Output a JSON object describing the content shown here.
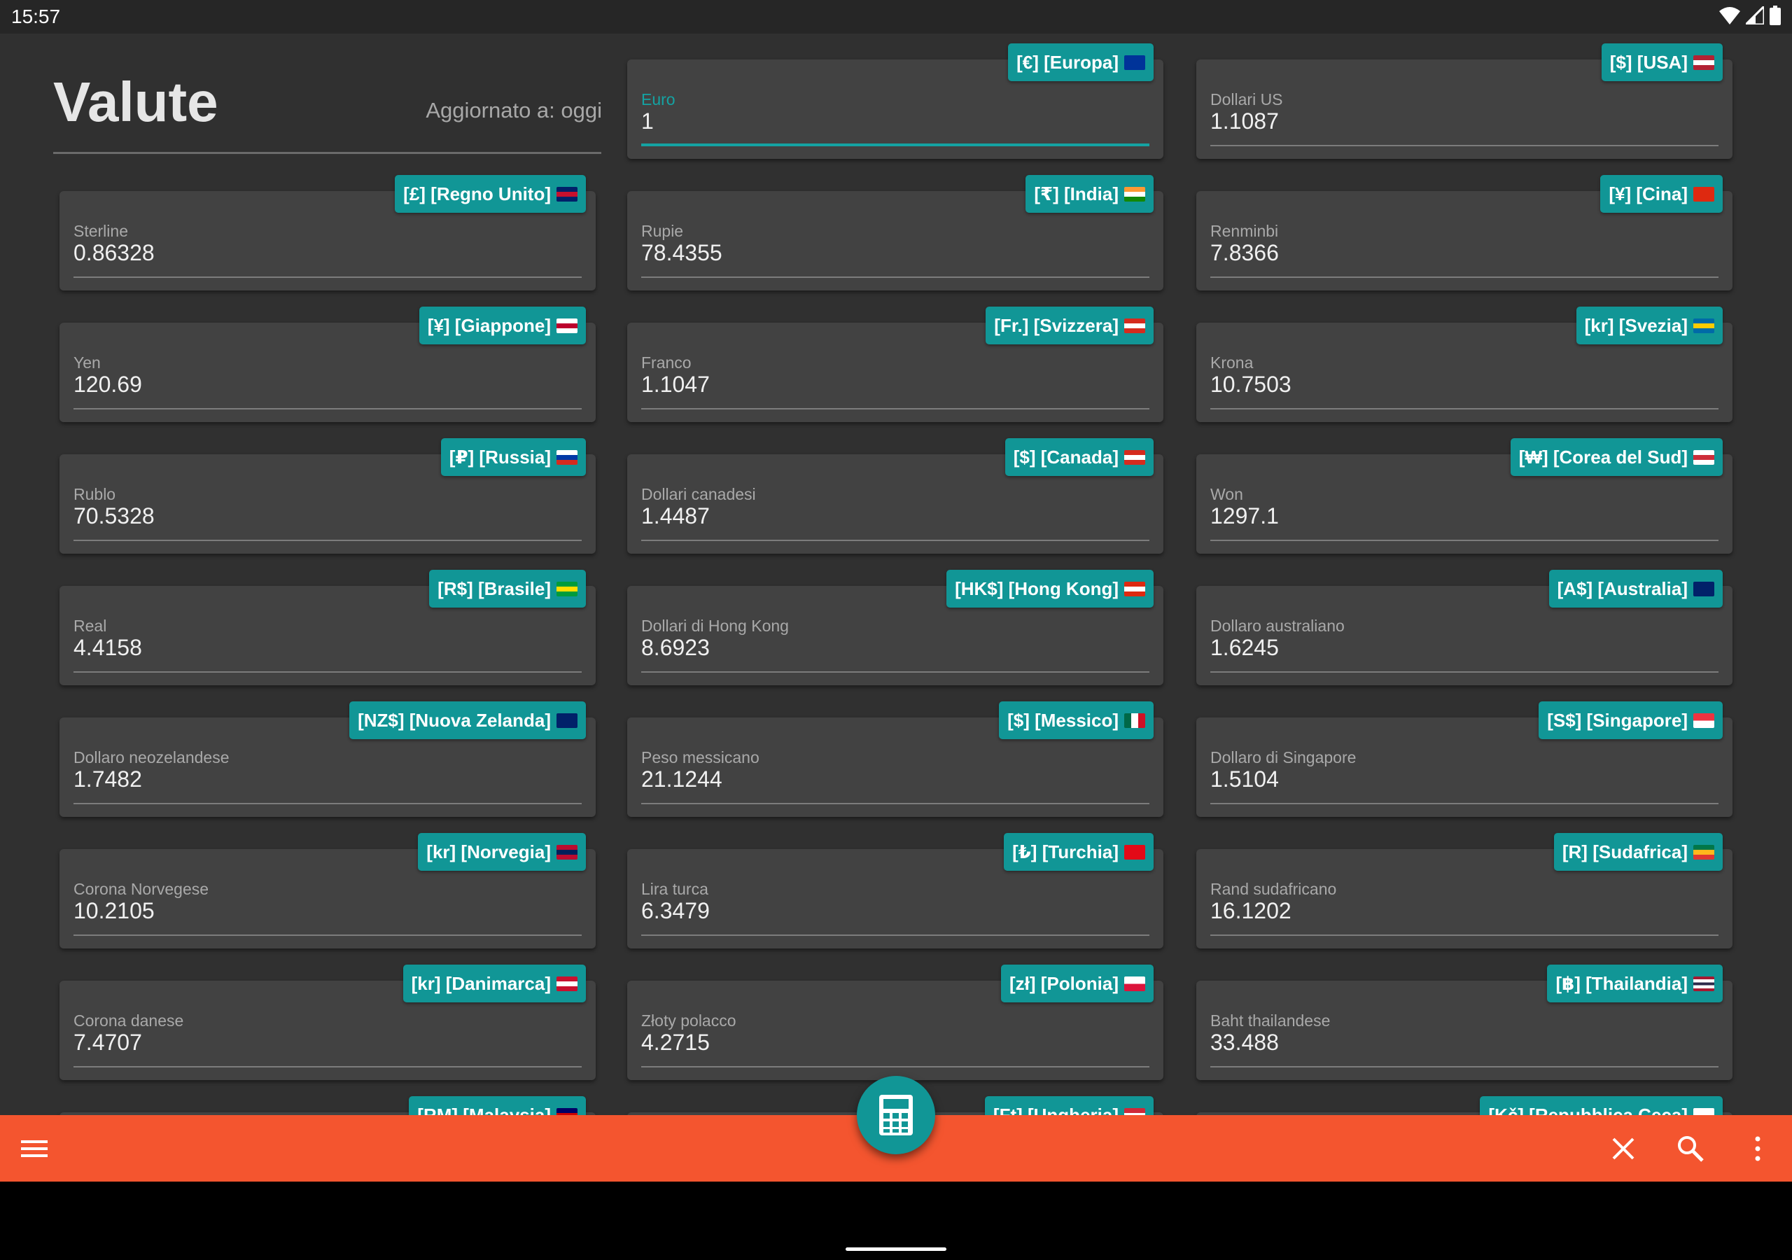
{
  "status_bar": {
    "time": "15:57",
    "icons": [
      "wifi-icon",
      "signal-icon",
      "battery-icon"
    ]
  },
  "header": {
    "title": "Valute",
    "updated": "Aggiornato a: oggi"
  },
  "colors": {
    "accent": "#119696",
    "bar": "#f4552f",
    "card": "#424242",
    "background": "#303030"
  },
  "currencies": [
    {
      "label": "Euro",
      "value": "1",
      "badge": "[€] [Europa]",
      "flag": [
        "#003399",
        "#003399"
      ],
      "active": true
    },
    {
      "label": "Dollari US",
      "value": "1.1087",
      "badge": "[$] [USA]",
      "flag": [
        "#b22234",
        "#ffffff",
        "#b22234"
      ]
    },
    {
      "label": "Sterline",
      "value": "0.86328",
      "badge": "[£] [Regno Unito]",
      "flag": [
        "#012169",
        "#c8102e",
        "#012169"
      ]
    },
    {
      "label": "Rupie",
      "value": "78.4355",
      "badge": "[₹] [India]",
      "flag": [
        "#ff9933",
        "#ffffff",
        "#138808"
      ]
    },
    {
      "label": "Renminbi",
      "value": "7.8366",
      "badge": "[¥] [Cina]",
      "flag": [
        "#de2910",
        "#de2910"
      ]
    },
    {
      "label": "Yen",
      "value": "120.69",
      "badge": "[¥] [Giappone]",
      "flag": [
        "#ffffff",
        "#bc002d",
        "#ffffff"
      ]
    },
    {
      "label": "Franco",
      "value": "1.1047",
      "badge": "[Fr.] [Svizzera]",
      "flag": [
        "#d52b1e",
        "#ffffff",
        "#d52b1e"
      ]
    },
    {
      "label": "Krona",
      "value": "10.7503",
      "badge": "[kr] [Svezia]",
      "flag": [
        "#006aa7",
        "#fecc00",
        "#006aa7"
      ]
    },
    {
      "label": "Rublo",
      "value": "70.5328",
      "badge": "[₽] [Russia]",
      "flag": [
        "#ffffff",
        "#0039a6",
        "#d52b1e"
      ]
    },
    {
      "label": "Dollari canadesi",
      "value": "1.4487",
      "badge": "[$] [Canada]",
      "flag": [
        "#d52b1e",
        "#ffffff",
        "#d52b1e"
      ]
    },
    {
      "label": "Won",
      "value": "1297.1",
      "badge": "[₩] [Corea del Sud]",
      "flag": [
        "#ffffff",
        "#cd2e3a",
        "#ffffff"
      ]
    },
    {
      "label": "Real",
      "value": "4.4158",
      "badge": "[R$] [Brasile]",
      "flag": [
        "#009c3b",
        "#ffdf00",
        "#009c3b"
      ]
    },
    {
      "label": "Dollari di Hong Kong",
      "value": "8.6923",
      "badge": "[HK$] [Hong Kong]",
      "flag": [
        "#de2910",
        "#ffffff",
        "#de2910"
      ]
    },
    {
      "label": "Dollaro australiano",
      "value": "1.6245",
      "badge": "[A$] [Australia]",
      "flag": [
        "#012169",
        "#012169"
      ]
    },
    {
      "label": "Dollaro neozelandese",
      "value": "1.7482",
      "badge": "[NZ$] [Nuova Zelanda]",
      "flag": [
        "#012169",
        "#012169"
      ]
    },
    {
      "label": "Peso messicano",
      "value": "21.1244",
      "badge": "[$] [Messico]",
      "flag": [
        "#006847",
        "#ffffff",
        "#ce1126"
      ],
      "h": true
    },
    {
      "label": "Dollaro di Singapore",
      "value": "1.5104",
      "badge": "[S$] [Singapore]",
      "flag": [
        "#ef3340",
        "#ffffff"
      ]
    },
    {
      "label": "Corona Norvegese",
      "value": "10.2105",
      "badge": "[kr] [Norvegia]",
      "flag": [
        "#ba0c2f",
        "#00205b",
        "#ba0c2f"
      ]
    },
    {
      "label": "Lira turca",
      "value": "6.3479",
      "badge": "[₺] [Turchia]",
      "flag": [
        "#e30a17",
        "#e30a17"
      ]
    },
    {
      "label": "Rand sudafricano",
      "value": "16.1202",
      "badge": "[R] [Sudafrica]",
      "flag": [
        "#007749",
        "#ffb81c",
        "#de3831"
      ]
    },
    {
      "label": "Corona danese",
      "value": "7.4707",
      "badge": "[kr] [Danimarca]",
      "flag": [
        "#c8102e",
        "#ffffff",
        "#c8102e"
      ]
    },
    {
      "label": "Złoty polacco",
      "value": "4.2715",
      "badge": "[zł] [Polonia]",
      "flag": [
        "#ffffff",
        "#dc143c"
      ]
    },
    {
      "label": "Baht thailandese",
      "value": "33.488",
      "badge": "[฿] [Thailandia]",
      "flag": [
        "#a51931",
        "#ffffff",
        "#2d2a4a",
        "#ffffff",
        "#a51931"
      ]
    },
    {
      "label": "",
      "value": "",
      "badge": "[RM] [Malaysia]",
      "flag": [
        "#010066",
        "#cc0001",
        "#ffffff"
      ]
    },
    {
      "label": "",
      "value": "",
      "badge": "[Ft] [Ungheria]",
      "flag": [
        "#ce2939",
        "#ffffff",
        "#477050"
      ]
    },
    {
      "label": "",
      "value": "",
      "badge": "[Kč] [Repubblica Ceca]",
      "flag": [
        "#ffffff",
        "#d7141a"
      ]
    }
  ],
  "bottom_bar": {
    "icons": [
      "menu-icon",
      "close-icon",
      "search-icon",
      "more-vert-icon"
    ],
    "fab_icon": "calculator-icon"
  }
}
